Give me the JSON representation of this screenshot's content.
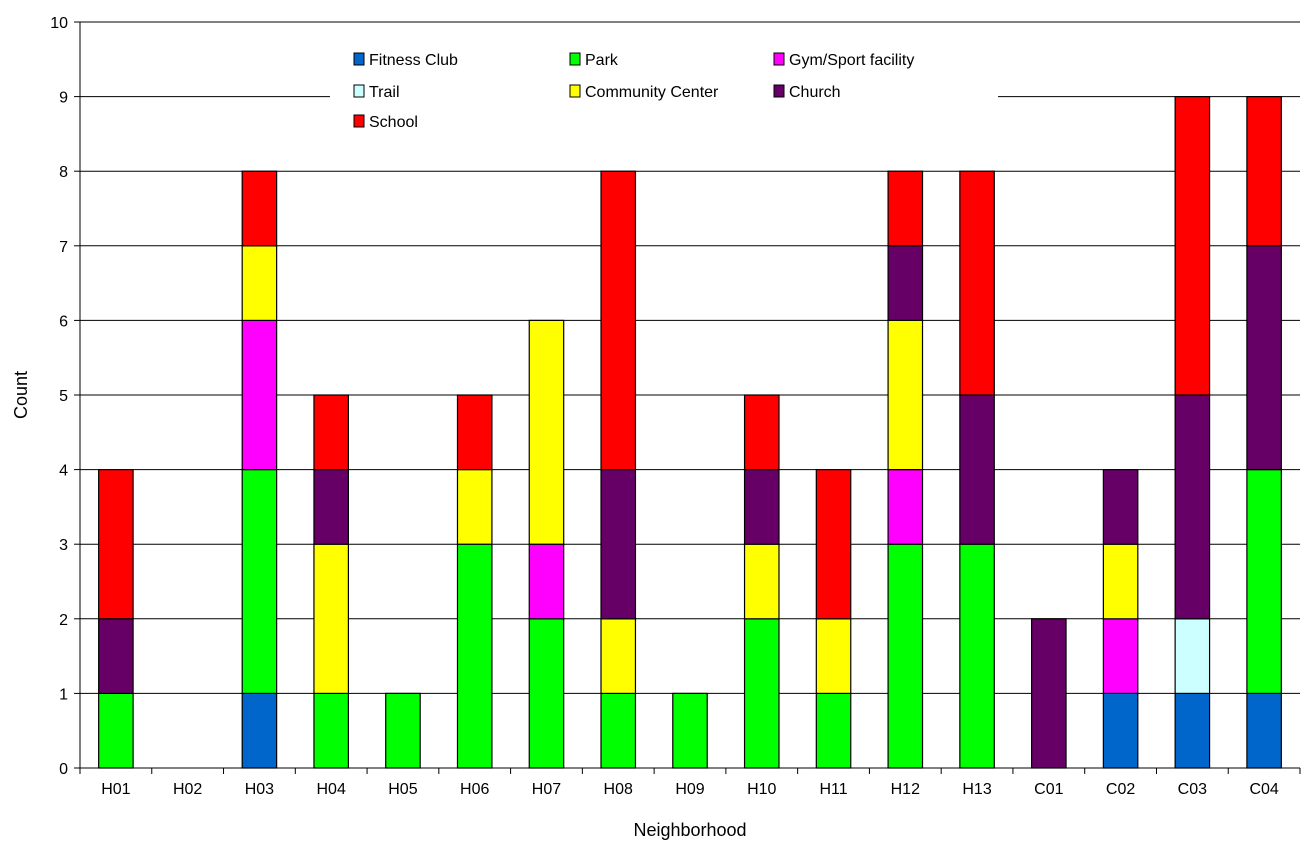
{
  "chart_data": {
    "type": "bar",
    "stacked": true,
    "title": "",
    "xlabel": "Neighborhood",
    "ylabel": "Count",
    "ylim": [
      0,
      10
    ],
    "yticks": [
      "0",
      "1",
      "2",
      "3",
      "4",
      "5",
      "6",
      "7",
      "8",
      "9",
      "10"
    ],
    "grid": true,
    "legend_position": "top",
    "categories": [
      "H01",
      "H02",
      "H03",
      "H04",
      "H05",
      "H06",
      "H07",
      "H08",
      "H09",
      "H10",
      "H11",
      "H12",
      "H13",
      "C01",
      "C02",
      "C03",
      "C04"
    ],
    "series": [
      {
        "name": "Fitness Club",
        "color": "#0066cc",
        "values": [
          0,
          0,
          1,
          0,
          0,
          0,
          0,
          0,
          0,
          0,
          0,
          0,
          0,
          0,
          1,
          1,
          1
        ]
      },
      {
        "name": "Trail",
        "color": "#ccffff",
        "values": [
          0,
          0,
          0,
          0,
          0,
          0,
          0,
          0,
          0,
          0,
          0,
          0,
          0,
          0,
          0,
          1,
          0
        ]
      },
      {
        "name": "School",
        "color": "#ff0000",
        "values": [
          2,
          0,
          1,
          1,
          0,
          1,
          0,
          4,
          0,
          1,
          2,
          1,
          3,
          0,
          0,
          4,
          2
        ]
      },
      {
        "name": "Park",
        "color": "#00ff00",
        "values": [
          1,
          0,
          3,
          1,
          1,
          3,
          2,
          1,
          1,
          2,
          1,
          3,
          3,
          0,
          0,
          0,
          3
        ]
      },
      {
        "name": "Community Center",
        "color": "#ffff00",
        "values": [
          0,
          0,
          1,
          2,
          0,
          1,
          3,
          1,
          0,
          1,
          1,
          2,
          0,
          0,
          1,
          0,
          0
        ]
      },
      {
        "name": "Gym/Sport facility",
        "color": "#ff00ff",
        "values": [
          0,
          0,
          2,
          0,
          0,
          0,
          1,
          0,
          0,
          0,
          0,
          1,
          0,
          0,
          1,
          0,
          0
        ]
      },
      {
        "name": "Church",
        "color": "#660066",
        "values": [
          1,
          0,
          0,
          1,
          0,
          0,
          0,
          2,
          0,
          1,
          0,
          1,
          2,
          2,
          1,
          3,
          3
        ]
      }
    ],
    "stack_order": [
      "Fitness Club",
      "Trail",
      "Park",
      "Gym/Sport facility",
      "Community Center",
      "Church",
      "School"
    ]
  }
}
